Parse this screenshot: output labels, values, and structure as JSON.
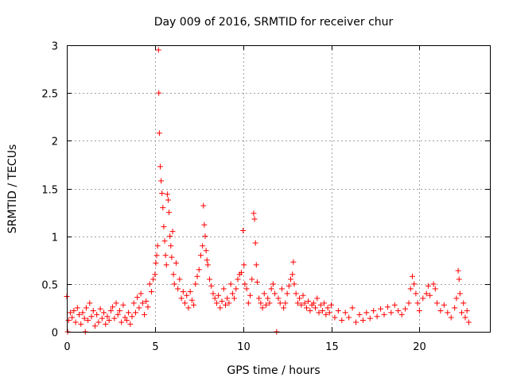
{
  "chart_data": {
    "type": "scatter",
    "title": "Day 009 of 2016, SRMTID for receiver chur",
    "xlabel": "GPS time / hours",
    "ylabel": "SRMTID / TECUs",
    "xlim": [
      0,
      24
    ],
    "ylim": [
      0,
      3
    ],
    "xticks": [
      0,
      5,
      10,
      15,
      20
    ],
    "yticks": [
      0,
      0.5,
      1,
      1.5,
      2,
      2.5,
      3
    ],
    "ytick_labels": [
      "0",
      "0.5",
      "1",
      "1.5",
      "2",
      "2.5",
      "3"
    ],
    "grid": true,
    "marker": "+",
    "color": "#ff0000",
    "series": [
      {
        "name": "SRMTID",
        "points": [
          [
            0.0,
            0.37
          ],
          [
            0.05,
            0.0
          ],
          [
            0.1,
            0.12
          ],
          [
            0.2,
            0.2
          ],
          [
            0.3,
            0.15
          ],
          [
            0.4,
            0.22
          ],
          [
            0.5,
            0.1
          ],
          [
            0.6,
            0.25
          ],
          [
            0.7,
            0.18
          ],
          [
            0.8,
            0.08
          ],
          [
            0.9,
            0.2
          ],
          [
            1.0,
            0.14
          ],
          [
            1.05,
            0.0
          ],
          [
            1.1,
            0.25
          ],
          [
            1.2,
            0.12
          ],
          [
            1.3,
            0.3
          ],
          [
            1.4,
            0.16
          ],
          [
            1.5,
            0.22
          ],
          [
            1.6,
            0.06
          ],
          [
            1.7,
            0.18
          ],
          [
            1.8,
            0.1
          ],
          [
            1.9,
            0.24
          ],
          [
            2.0,
            0.14
          ],
          [
            2.1,
            0.2
          ],
          [
            2.2,
            0.08
          ],
          [
            2.3,
            0.16
          ],
          [
            2.4,
            0.12
          ],
          [
            2.5,
            0.22
          ],
          [
            2.6,
            0.26
          ],
          [
            2.7,
            0.14
          ],
          [
            2.8,
            0.3
          ],
          [
            2.9,
            0.18
          ],
          [
            3.0,
            0.22
          ],
          [
            3.1,
            0.1
          ],
          [
            3.2,
            0.28
          ],
          [
            3.3,
            0.15
          ],
          [
            3.4,
            0.12
          ],
          [
            3.5,
            0.2
          ],
          [
            3.6,
            0.08
          ],
          [
            3.7,
            0.16
          ],
          [
            3.8,
            0.3
          ],
          [
            3.9,
            0.2
          ],
          [
            4.0,
            0.36
          ],
          [
            4.1,
            0.25
          ],
          [
            4.2,
            0.4
          ],
          [
            4.3,
            0.3
          ],
          [
            4.4,
            0.18
          ],
          [
            4.5,
            0.32
          ],
          [
            4.6,
            0.26
          ],
          [
            4.7,
            0.5
          ],
          [
            4.8,
            0.42
          ],
          [
            4.9,
            0.55
          ],
          [
            5.0,
            0.6
          ],
          [
            5.05,
            0.72
          ],
          [
            5.1,
            0.8
          ],
          [
            5.15,
            0.9
          ],
          [
            5.2,
            2.95
          ],
          [
            5.22,
            2.5
          ],
          [
            5.25,
            2.08
          ],
          [
            5.3,
            1.73
          ],
          [
            5.35,
            1.58
          ],
          [
            5.4,
            1.45
          ],
          [
            5.45,
            1.3
          ],
          [
            5.5,
            1.1
          ],
          [
            5.55,
            0.95
          ],
          [
            5.6,
            0.8
          ],
          [
            5.65,
            0.7
          ],
          [
            5.7,
            1.44
          ],
          [
            5.75,
            1.38
          ],
          [
            5.8,
            1.25
          ],
          [
            5.85,
            1.0
          ],
          [
            5.9,
            0.9
          ],
          [
            5.95,
            0.78
          ],
          [
            6.0,
            1.05
          ],
          [
            6.05,
            0.6
          ],
          [
            6.1,
            0.5
          ],
          [
            6.2,
            0.72
          ],
          [
            6.3,
            0.45
          ],
          [
            6.4,
            0.55
          ],
          [
            6.5,
            0.35
          ],
          [
            6.6,
            0.42
          ],
          [
            6.7,
            0.3
          ],
          [
            6.8,
            0.38
          ],
          [
            6.9,
            0.25
          ],
          [
            7.0,
            0.42
          ],
          [
            7.1,
            0.33
          ],
          [
            7.2,
            0.28
          ],
          [
            7.3,
            0.5
          ],
          [
            7.4,
            0.58
          ],
          [
            7.5,
            0.65
          ],
          [
            7.6,
            0.8
          ],
          [
            7.7,
            0.9
          ],
          [
            7.75,
            1.32
          ],
          [
            7.8,
            1.12
          ],
          [
            7.85,
            1.0
          ],
          [
            7.9,
            0.85
          ],
          [
            7.95,
            0.75
          ],
          [
            8.0,
            0.7
          ],
          [
            8.1,
            0.55
          ],
          [
            8.2,
            0.48
          ],
          [
            8.3,
            0.4
          ],
          [
            8.4,
            0.35
          ],
          [
            8.5,
            0.3
          ],
          [
            8.6,
            0.38
          ],
          [
            8.7,
            0.25
          ],
          [
            8.8,
            0.32
          ],
          [
            8.9,
            0.45
          ],
          [
            9.0,
            0.28
          ],
          [
            9.1,
            0.35
          ],
          [
            9.2,
            0.3
          ],
          [
            9.3,
            0.5
          ],
          [
            9.4,
            0.4
          ],
          [
            9.5,
            0.35
          ],
          [
            9.6,
            0.45
          ],
          [
            9.7,
            0.55
          ],
          [
            9.8,
            0.6
          ],
          [
            9.9,
            0.62
          ],
          [
            10.0,
            1.06
          ],
          [
            10.05,
            0.7
          ],
          [
            10.1,
            0.5
          ],
          [
            10.2,
            0.45
          ],
          [
            10.3,
            0.3
          ],
          [
            10.4,
            0.38
          ],
          [
            10.5,
            0.55
          ],
          [
            10.6,
            1.24
          ],
          [
            10.65,
            1.18
          ],
          [
            10.7,
            0.93
          ],
          [
            10.75,
            0.7
          ],
          [
            10.8,
            0.52
          ],
          [
            10.9,
            0.35
          ],
          [
            11.0,
            0.3
          ],
          [
            11.1,
            0.25
          ],
          [
            11.2,
            0.4
          ],
          [
            11.3,
            0.28
          ],
          [
            11.4,
            0.35
          ],
          [
            11.5,
            0.3
          ],
          [
            11.6,
            0.45
          ],
          [
            11.7,
            0.5
          ],
          [
            11.8,
            0.4
          ],
          [
            11.9,
            0.0
          ],
          [
            12.0,
            0.35
          ],
          [
            12.1,
            0.3
          ],
          [
            12.2,
            0.45
          ],
          [
            12.3,
            0.25
          ],
          [
            12.4,
            0.3
          ],
          [
            12.5,
            0.4
          ],
          [
            12.6,
            0.48
          ],
          [
            12.7,
            0.55
          ],
          [
            12.8,
            0.6
          ],
          [
            12.85,
            0.73
          ],
          [
            12.9,
            0.5
          ],
          [
            13.0,
            0.4
          ],
          [
            13.1,
            0.3
          ],
          [
            13.2,
            0.35
          ],
          [
            13.3,
            0.28
          ],
          [
            13.4,
            0.38
          ],
          [
            13.5,
            0.3
          ],
          [
            13.6,
            0.25
          ],
          [
            13.7,
            0.32
          ],
          [
            13.8,
            0.22
          ],
          [
            13.9,
            0.28
          ],
          [
            14.0,
            0.3
          ],
          [
            14.1,
            0.25
          ],
          [
            14.2,
            0.35
          ],
          [
            14.3,
            0.2
          ],
          [
            14.4,
            0.28
          ],
          [
            14.5,
            0.22
          ],
          [
            14.6,
            0.3
          ],
          [
            14.7,
            0.18
          ],
          [
            14.8,
            0.25
          ],
          [
            14.9,
            0.2
          ],
          [
            15.0,
            0.28
          ],
          [
            15.2,
            0.15
          ],
          [
            15.4,
            0.22
          ],
          [
            15.6,
            0.12
          ],
          [
            15.8,
            0.2
          ],
          [
            16.0,
            0.15
          ],
          [
            16.2,
            0.25
          ],
          [
            16.4,
            0.1
          ],
          [
            16.6,
            0.18
          ],
          [
            16.8,
            0.12
          ],
          [
            17.0,
            0.2
          ],
          [
            17.2,
            0.14
          ],
          [
            17.4,
            0.22
          ],
          [
            17.6,
            0.16
          ],
          [
            17.8,
            0.24
          ],
          [
            18.0,
            0.18
          ],
          [
            18.2,
            0.26
          ],
          [
            18.4,
            0.2
          ],
          [
            18.6,
            0.28
          ],
          [
            18.8,
            0.22
          ],
          [
            19.0,
            0.18
          ],
          [
            19.2,
            0.24
          ],
          [
            19.4,
            0.3
          ],
          [
            19.5,
            0.45
          ],
          [
            19.6,
            0.58
          ],
          [
            19.7,
            0.5
          ],
          [
            19.8,
            0.4
          ],
          [
            19.9,
            0.3
          ],
          [
            20.0,
            0.22
          ],
          [
            20.2,
            0.35
          ],
          [
            20.4,
            0.4
          ],
          [
            20.5,
            0.48
          ],
          [
            20.6,
            0.38
          ],
          [
            20.8,
            0.5
          ],
          [
            20.9,
            0.45
          ],
          [
            21.0,
            0.3
          ],
          [
            21.2,
            0.22
          ],
          [
            21.4,
            0.28
          ],
          [
            21.6,
            0.2
          ],
          [
            21.8,
            0.15
          ],
          [
            22.0,
            0.25
          ],
          [
            22.1,
            0.35
          ],
          [
            22.2,
            0.64
          ],
          [
            22.25,
            0.55
          ],
          [
            22.3,
            0.4
          ],
          [
            22.4,
            0.2
          ],
          [
            22.5,
            0.3
          ],
          [
            22.6,
            0.15
          ],
          [
            22.7,
            0.22
          ],
          [
            22.8,
            0.1
          ]
        ]
      }
    ]
  }
}
